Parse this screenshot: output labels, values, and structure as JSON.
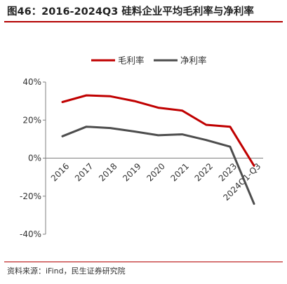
{
  "title": "图46：2016-2024Q3 硅料企业平均毛利率与净利率",
  "source": "资料来源：iFind，民生证券研究院",
  "chart_data": {
    "type": "line",
    "categories": [
      "2016",
      "2017",
      "2018",
      "2019",
      "2020",
      "2021",
      "2022",
      "2023",
      "2024Q1-Q3"
    ],
    "series": [
      {
        "name": "毛利率",
        "color": "#c00000",
        "values": [
          29.5,
          33,
          32.5,
          30,
          26.5,
          25,
          17.5,
          16.5,
          -4
        ]
      },
      {
        "name": "净利率",
        "color": "#4d4d4d",
        "values": [
          11.5,
          16.5,
          15.8,
          14,
          12,
          12.5,
          9.5,
          6,
          -24
        ]
      }
    ],
    "y_ticks": [
      "40%",
      "20%",
      "0%",
      "-20%",
      "-40%"
    ],
    "ylim": [
      -40,
      40
    ],
    "y_unit": "%",
    "legend_position": "top",
    "grid": false,
    "xlabel": "",
    "ylabel": ""
  }
}
